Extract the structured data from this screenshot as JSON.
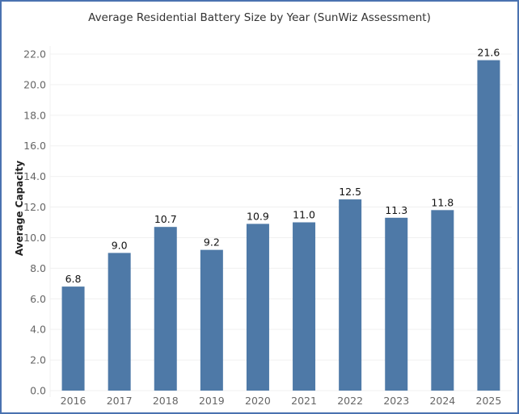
{
  "chart_data": {
    "type": "bar",
    "title": "Average Residential Battery Size by Year (SunWiz Assessment)",
    "xlabel": "",
    "ylabel": "Average Capacity",
    "categories": [
      "2016",
      "2017",
      "2018",
      "2019",
      "2020",
      "2021",
      "2022",
      "2023",
      "2024",
      "2025"
    ],
    "values": [
      6.8,
      9.0,
      10.7,
      9.2,
      10.9,
      11.0,
      12.5,
      11.3,
      11.8,
      21.6
    ],
    "data_labels": [
      "6.8",
      "9.0",
      "10.7",
      "9.2",
      "10.9",
      "11.0",
      "12.5",
      "11.3",
      "11.8",
      "21.6"
    ],
    "yticks": [
      "0.0",
      "2.0",
      "4.0",
      "6.0",
      "8.0",
      "10.0",
      "12.0",
      "14.0",
      "16.0",
      "18.0",
      "20.0",
      "22.0"
    ],
    "ytick_values": [
      0,
      2,
      4,
      6,
      8,
      10,
      12,
      14,
      16,
      18,
      20,
      22
    ],
    "ylim": [
      0,
      22
    ],
    "grid": true,
    "legend": "none",
    "bar_color": "#4e79a7",
    "frame_color": "#4a72b0"
  }
}
